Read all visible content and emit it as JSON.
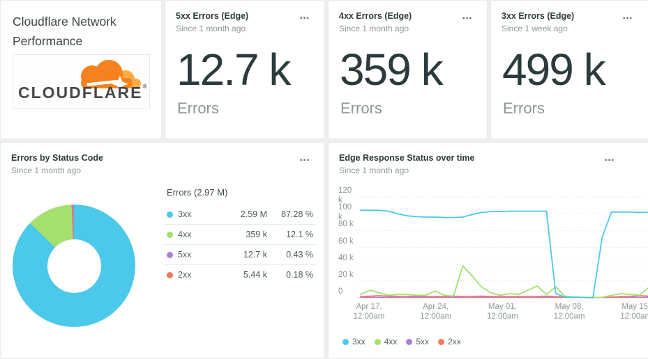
{
  "ui": {
    "menu_ellipsis": "…"
  },
  "title_card": {
    "title": "Cloudflare Network Performance",
    "logo_text": "CLOUDFLARE",
    "logo_reg": "®",
    "logo_orange": "#f6821f",
    "logo_light_orange": "#fbad41"
  },
  "stat_cards": [
    {
      "title": "5xx Errors (Edge)",
      "subtitle": "Since 1 month ago",
      "value": "12.7 k",
      "unit": "Errors"
    },
    {
      "title": "4xx Errors (Edge)",
      "subtitle": "Since 1 month ago",
      "value": "359 k",
      "unit": "Errors"
    },
    {
      "title": "3xx Errors (Edge)",
      "subtitle": "Since 1 week ago",
      "value": "499 k",
      "unit": "Errors"
    }
  ],
  "donut_card": {
    "title": "Errors by Status Code",
    "subtitle": "Since 1 month ago"
  },
  "line_card": {
    "title": "Edge Response Status over time",
    "subtitle": "Since 1 month ago"
  },
  "chart_data": [
    {
      "type": "pie",
      "title": "Errors by Status Code",
      "total_label": "Errors (2.97 M)",
      "slices": [
        {
          "label": "3xx",
          "value_label": "2.59 M",
          "pct": 87.28,
          "pct_label": "87.28 %",
          "color": "#4bc8ea"
        },
        {
          "label": "4xx",
          "value_label": "359 k",
          "pct": 12.1,
          "pct_label": "12.1 %",
          "color": "#a4e06d"
        },
        {
          "label": "5xx",
          "value_label": "12.7 k",
          "pct": 0.43,
          "pct_label": "0.43 %",
          "color": "#b07ed6"
        },
        {
          "label": "2xx",
          "value_label": "5.44 k",
          "pct": 0.18,
          "pct_label": "0.18 %",
          "color": "#f5795c"
        }
      ]
    },
    {
      "type": "line",
      "title": "Edge Response Status over time",
      "ylim": [
        0,
        120000
      ],
      "grid": true,
      "legend_position": "bottom",
      "y_ticks": [
        "120 k",
        "100 k",
        "80 k",
        "60 k",
        "40 k",
        "20 k",
        "0"
      ],
      "x_ticks": [
        [
          "Apr 17,",
          "12:00am"
        ],
        [
          "Apr 24,",
          "12:00am"
        ],
        [
          "May 01,",
          "12:00am"
        ],
        [
          "May 08,",
          "12:00am"
        ],
        [
          "May 15,",
          "12:00am"
        ]
      ],
      "series": [
        {
          "name": "3xx",
          "color": "#4bc8ea",
          "values": [
            104000,
            104000,
            104000,
            103000,
            100000,
            97500,
            96500,
            96000,
            96000,
            95500,
            95500,
            96000,
            99000,
            101500,
            102500,
            102500,
            103000,
            103000,
            103000,
            103000,
            103000,
            5000,
            1000,
            500,
            500,
            0,
            72000,
            102000,
            102000,
            102000,
            101500,
            102000
          ]
        },
        {
          "name": "4xx",
          "color": "#a4e06d",
          "values": [
            4000,
            9000,
            6000,
            3000,
            4000,
            4000,
            3000,
            3000,
            8000,
            3000,
            2000,
            38000,
            26000,
            13000,
            6000,
            3000,
            5000,
            4000,
            9000,
            14000,
            4000,
            13000,
            2000,
            1000,
            500,
            500,
            500,
            3000,
            5000,
            4000,
            3000,
            12000
          ]
        },
        {
          "name": "5xx",
          "color": "#b07ed6",
          "values": [
            500,
            500,
            500,
            500,
            500,
            500,
            500,
            500,
            500,
            500,
            500,
            500,
            500,
            500,
            500,
            500,
            500,
            500,
            500,
            500,
            500,
            500,
            500,
            500,
            500,
            500,
            500,
            500,
            500,
            500,
            500,
            500
          ]
        },
        {
          "name": "2xx",
          "color": "#f5795c",
          "values": [
            1500,
            2000,
            2500,
            2000,
            1500,
            1500,
            2000,
            1500,
            1500,
            1500,
            2000,
            1500,
            1500,
            2000,
            1500,
            1500,
            1500,
            1500,
            1500,
            1500,
            2000,
            1500,
            800,
            500,
            500,
            500,
            500,
            800,
            1500,
            1500,
            2500,
            2000
          ]
        }
      ]
    }
  ]
}
